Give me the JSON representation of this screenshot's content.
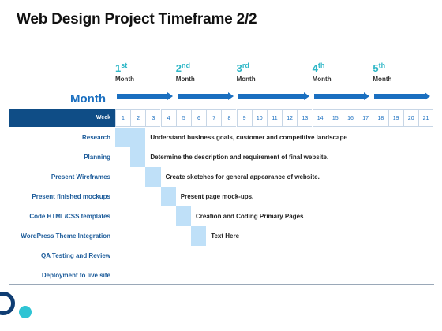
{
  "title": "Web Design Project Timeframe 2/2",
  "month_label": "Month",
  "months": [
    {
      "num": "1",
      "suffix": "st",
      "word": "Month",
      "start_week": 1,
      "end_week": 4
    },
    {
      "num": "2",
      "suffix": "nd",
      "word": "Month",
      "start_week": 5,
      "end_week": 8
    },
    {
      "num": "3",
      "suffix": "rd",
      "word": "Month",
      "start_week": 9,
      "end_week": 13
    },
    {
      "num": "4",
      "suffix": "th",
      "word": "Month",
      "start_week": 14,
      "end_week": 17
    },
    {
      "num": "5",
      "suffix": "th",
      "word": "Month",
      "start_week": 18,
      "end_week": 21
    }
  ],
  "week_label": "Week",
  "weeks": [
    "1",
    "2",
    "3",
    "4",
    "5",
    "6",
    "7",
    "8",
    "9",
    "10",
    "11",
    "12",
    "13",
    "14",
    "15",
    "16",
    "17",
    "18",
    "19",
    "20",
    "21"
  ],
  "tasks": [
    {
      "name": "Research",
      "description": "Understand business goals, customer and competitive landscape",
      "start_week": 1,
      "end_week": 2
    },
    {
      "name": "Planning",
      "description": "Determine the description and requirement of final website.",
      "start_week": 2,
      "end_week": 2
    },
    {
      "name": "Present Wireframes",
      "description": "Create sketches for general appearance of website.",
      "start_week": 3,
      "end_week": 3
    },
    {
      "name": "Present finished mockups",
      "description": "Present page mock-ups.",
      "start_week": 4,
      "end_week": 4
    },
    {
      "name": "Code HTML/CSS templates",
      "description": "Creation and Coding Primary Pages",
      "start_week": 5,
      "end_week": 5
    },
    {
      "name": "WordPress Theme Integration",
      "description": "Text Here",
      "start_week": 6,
      "end_week": 6
    },
    {
      "name": "QA Testing and Review",
      "description": "",
      "start_week": null,
      "end_week": null
    },
    {
      "name": "Deployment to live site",
      "description": "",
      "start_week": null,
      "end_week": null
    }
  ],
  "colors": {
    "primary": "#1a6fc0",
    "accent": "#2fb7c7",
    "bar": "#bfe0f8",
    "header": "#0f4d86"
  }
}
